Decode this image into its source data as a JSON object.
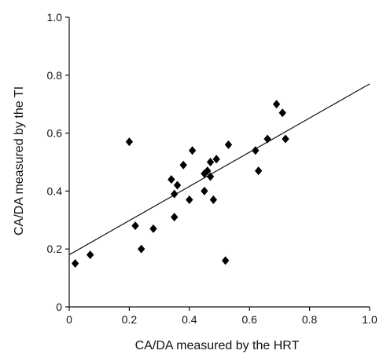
{
  "chart_data": {
    "type": "scatter",
    "title": "",
    "xlabel": "CA/DA measured by the HRT",
    "ylabel": "CA/DA measured by the TI",
    "xlim": [
      0,
      1.0
    ],
    "ylim": [
      0,
      1.0
    ],
    "x_ticks": [
      "0",
      "0.2",
      "0.4",
      "0.6",
      "0.8",
      "1.0"
    ],
    "y_ticks": [
      "0",
      "0.2",
      "0.4",
      "0.6",
      "0.8",
      "1.0"
    ],
    "grid": false,
    "marker": "diamond",
    "marker_color": "#000000",
    "points": [
      {
        "x": 0.02,
        "y": 0.15
      },
      {
        "x": 0.07,
        "y": 0.18
      },
      {
        "x": 0.2,
        "y": 0.57
      },
      {
        "x": 0.22,
        "y": 0.28
      },
      {
        "x": 0.24,
        "y": 0.2
      },
      {
        "x": 0.28,
        "y": 0.27
      },
      {
        "x": 0.34,
        "y": 0.44
      },
      {
        "x": 0.35,
        "y": 0.39
      },
      {
        "x": 0.35,
        "y": 0.31
      },
      {
        "x": 0.36,
        "y": 0.42
      },
      {
        "x": 0.38,
        "y": 0.49
      },
      {
        "x": 0.4,
        "y": 0.37
      },
      {
        "x": 0.41,
        "y": 0.54
      },
      {
        "x": 0.45,
        "y": 0.4
      },
      {
        "x": 0.45,
        "y": 0.46
      },
      {
        "x": 0.46,
        "y": 0.47
      },
      {
        "x": 0.47,
        "y": 0.45
      },
      {
        "x": 0.47,
        "y": 0.5
      },
      {
        "x": 0.48,
        "y": 0.37
      },
      {
        "x": 0.49,
        "y": 0.51
      },
      {
        "x": 0.52,
        "y": 0.16
      },
      {
        "x": 0.53,
        "y": 0.56
      },
      {
        "x": 0.62,
        "y": 0.54
      },
      {
        "x": 0.63,
        "y": 0.47
      },
      {
        "x": 0.66,
        "y": 0.58
      },
      {
        "x": 0.69,
        "y": 0.7
      },
      {
        "x": 0.71,
        "y": 0.67
      },
      {
        "x": 0.72,
        "y": 0.58
      }
    ],
    "regression_line": {
      "x": [
        0,
        1.0
      ],
      "y": [
        0.18,
        0.77
      ]
    }
  }
}
